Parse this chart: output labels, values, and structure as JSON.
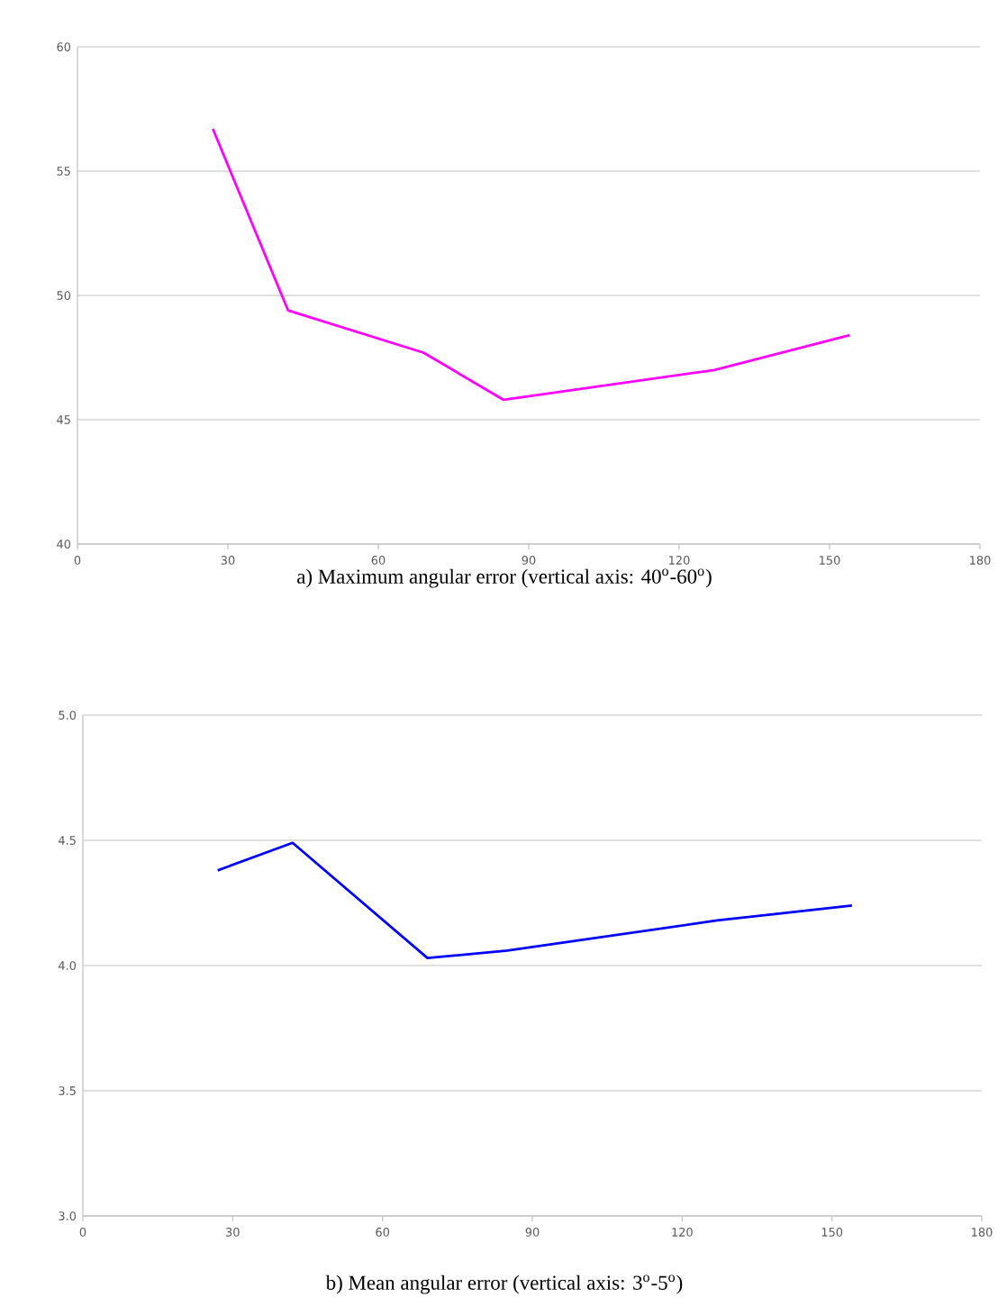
{
  "chart_data": [
    {
      "type": "line",
      "title": "a) Maximum angular error (vertical axis: 40$^{o}$-60$^{o}$)",
      "x": [
        27,
        42,
        69,
        85,
        127,
        154
      ],
      "values": [
        56.7,
        49.4,
        47.7,
        45.8,
        47.0,
        48.4
      ],
      "color": "#ff00ff",
      "xlim": [
        0,
        180
      ],
      "ylim": [
        40,
        60
      ],
      "xticks": [
        0,
        30,
        60,
        90,
        120,
        150,
        180
      ],
      "yticks": [
        40,
        45,
        50,
        55,
        60
      ],
      "grid": "y"
    },
    {
      "type": "line",
      "title": "b) Mean angular error (vertical axis: 3$^{o}$-5$^{o}$)",
      "x": [
        27,
        42,
        69,
        85,
        127,
        154
      ],
      "values": [
        4.38,
        4.49,
        4.03,
        4.06,
        4.18,
        4.24
      ],
      "color": "#0000ff",
      "xlim": [
        0,
        180
      ],
      "ylim": [
        3,
        5
      ],
      "xticks": [
        0,
        30,
        60,
        90,
        120,
        150,
        180
      ],
      "yticks": [
        {
          "value": 3,
          "label": "3.0"
        },
        3.5,
        {
          "value": 4,
          "label": "4.0"
        },
        4.5,
        {
          "value": 5,
          "label": "5.0"
        }
      ],
      "grid": "y"
    }
  ]
}
